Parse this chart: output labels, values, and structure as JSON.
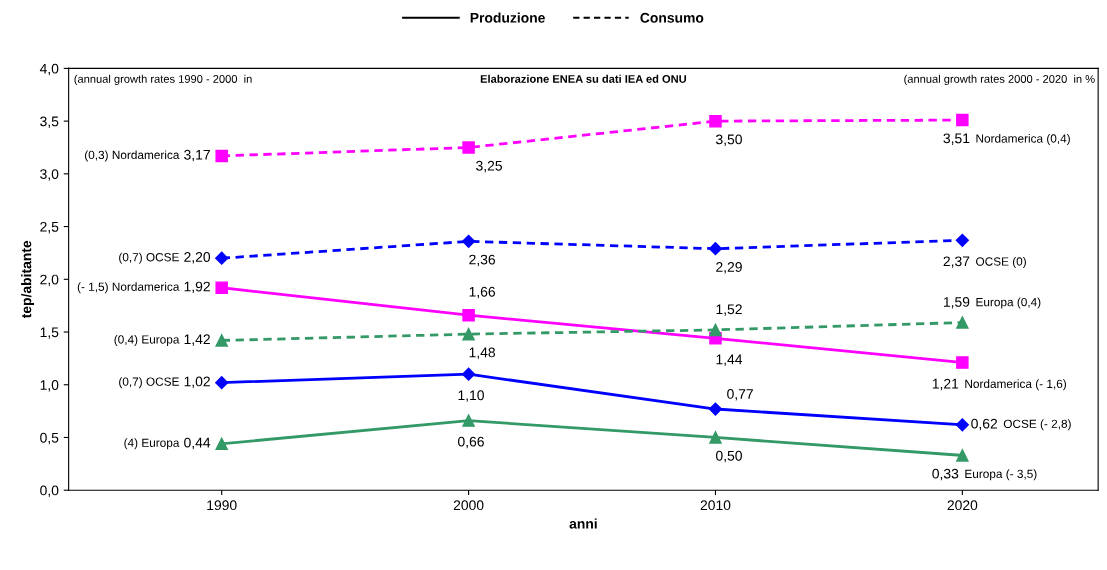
{
  "chart_data": {
    "type": "line",
    "title": "Elaborazione ENEA su dati IEA ed ONU",
    "xlabel": "anni",
    "ylabel": "tep/abitante",
    "categories": [
      "1990",
      "2000",
      "2010",
      "2020"
    ],
    "ylim": [
      0,
      4
    ],
    "yticks": [
      {
        "value": 0,
        "label": "0,0"
      },
      {
        "value": 0.5,
        "label": "0,5"
      },
      {
        "value": 1,
        "label": "1,0"
      },
      {
        "value": 1.5,
        "label": "1,5"
      },
      {
        "value": 2,
        "label": "2,0"
      },
      {
        "value": 2.5,
        "label": "2,5"
      },
      {
        "value": 3,
        "label": "3,0"
      },
      {
        "value": 3.5,
        "label": "3,5"
      },
      {
        "value": 4,
        "label": "4,0"
      }
    ],
    "grid": false,
    "series": [
      {
        "color": "#ff00ff",
        "marker": "square",
        "line_style": "dashed",
        "values": [
          3.17,
          3.25,
          3.5,
          3.51
        ],
        "value_labels": [
          "3,17",
          "3,25",
          "3,50",
          "3,51"
        ]
      },
      {
        "color": "#0000ff",
        "marker": "diamond",
        "line_style": "dashed",
        "values": [
          2.2,
          2.36,
          2.29,
          2.37
        ],
        "value_labels": [
          "2,20",
          "2,36",
          "2,29",
          "2,37"
        ]
      },
      {
        "color": "#ff00ff",
        "marker": "square",
        "line_style": "solid",
        "values": [
          1.92,
          1.66,
          1.44,
          1.21
        ],
        "value_labels": [
          "1,92",
          "1,66",
          "1,44",
          "1,21"
        ]
      },
      {
        "color": "#339966",
        "marker": "triangle",
        "line_style": "dashed",
        "values": [
          1.42,
          1.48,
          1.52,
          1.59
        ],
        "value_labels": [
          "1,42",
          "1,48",
          "1,52",
          "1,59"
        ]
      },
      {
        "color": "#0000ff",
        "marker": "diamond",
        "line_style": "solid",
        "values": [
          1.02,
          1.1,
          0.77,
          0.62
        ],
        "value_labels": [
          "1,02",
          "1,10",
          "0,77",
          "0,62"
        ]
      },
      {
        "color": "#339966",
        "marker": "triangle",
        "line_style": "solid",
        "values": [
          0.44,
          0.66,
          0.5,
          0.33
        ],
        "value_labels": [
          "0,44",
          "0,66",
          "0,50",
          "0,33"
        ]
      }
    ],
    "annotations": [
      "Produzione",
      "Consumo",
      "(annual growth rates 1990 - 2000  in",
      "(annual growth rates 2000 - 2020  in %",
      "(0,3) Nordamerica",
      "Nordamerica (0,4)",
      "(0,7) OCSE",
      "OCSE (0)",
      "(- 1,5) Nordamerica",
      "Nordamerica (- 1,6)",
      "(0,4) Europa",
      "Europa (0,4)",
      "(0,7) OCSE",
      "OCSE (- 2,8)",
      "(4) Europa",
      "Europa (- 3,5)"
    ]
  }
}
